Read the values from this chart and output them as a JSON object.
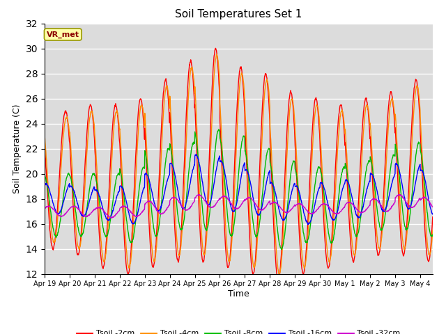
{
  "title": "Soil Temperatures Set 1",
  "xlabel": "Time",
  "ylabel": "Soil Temperature (C)",
  "ylim": [
    12,
    32
  ],
  "yticks": [
    12,
    14,
    16,
    18,
    20,
    22,
    24,
    26,
    28,
    30,
    32
  ],
  "annotation": "VR_met",
  "annotation_color": "#8B0000",
  "annotation_bg": "#FFFFAA",
  "bg_color": "#DCDCDC",
  "series_colors": [
    "#FF0000",
    "#FF8C00",
    "#00BB00",
    "#0000FF",
    "#CC00CC"
  ],
  "series_labels": [
    "Tsoil -2cm",
    "Tsoil -4cm",
    "Tsoil -8cm",
    "Tsoil -16cm",
    "Tsoil -32cm"
  ],
  "x_tick_labels": [
    "Apr 19",
    "Apr 20",
    "Apr 21",
    "Apr 22",
    "Apr 23",
    "Apr 24",
    "Apr 25",
    "Apr 26",
    "Apr 27",
    "Apr 28",
    "Apr 29",
    "Apr 30",
    "May 1",
    "May 2",
    "May 3",
    "May 4"
  ],
  "n_days": 15.5,
  "points_per_day": 96,
  "figsize": [
    6.4,
    4.8
  ],
  "dpi": 100
}
